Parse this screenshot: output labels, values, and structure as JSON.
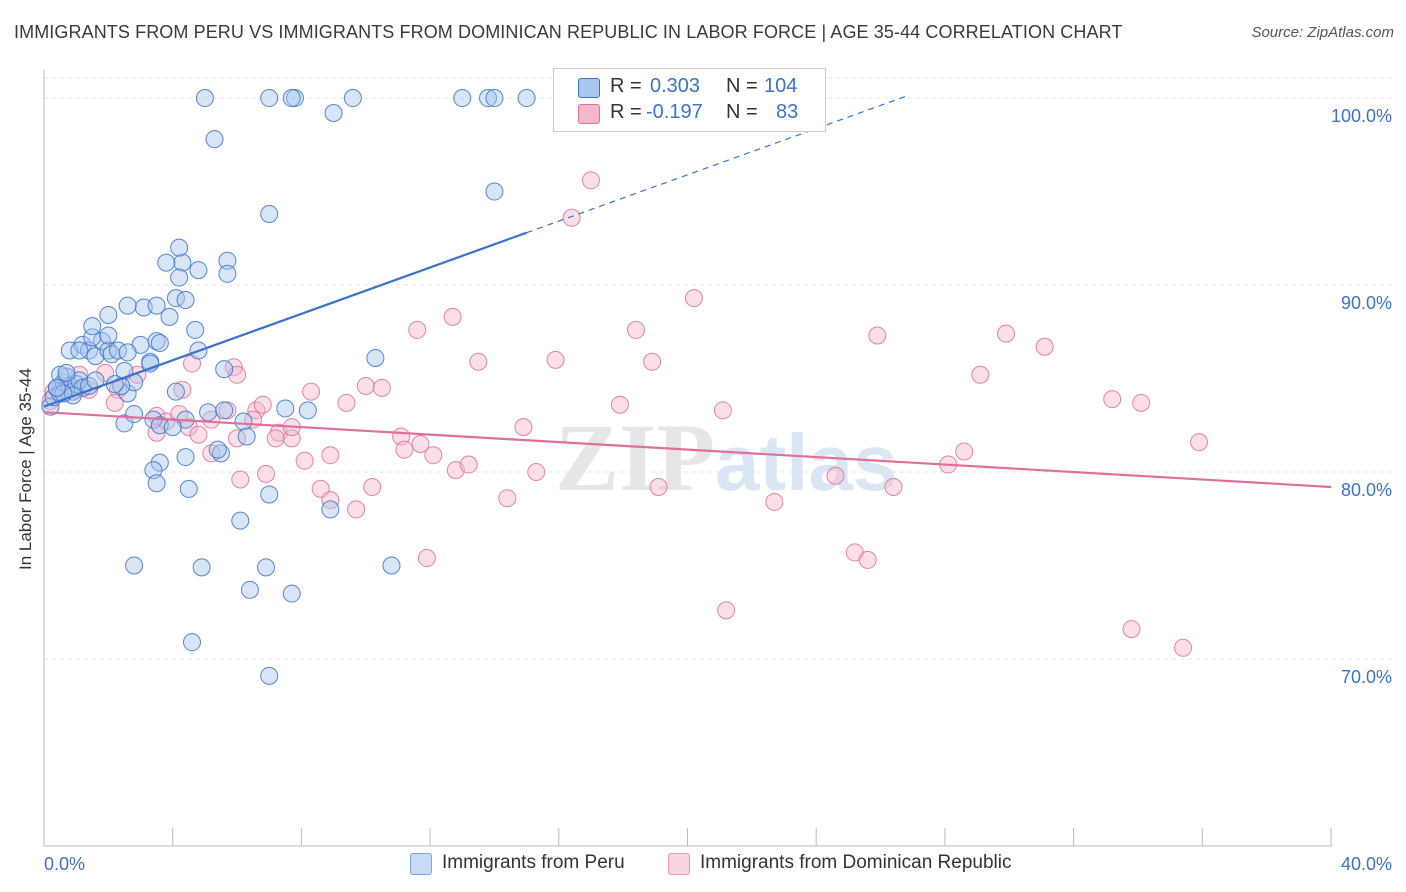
{
  "header": {
    "title": "IMMIGRANTS FROM PERU VS IMMIGRANTS FROM DOMINICAN REPUBLIC IN LABOR FORCE | AGE 35-44 CORRELATION CHART",
    "source": "Source: ZipAtlas.com"
  },
  "watermark": {
    "zip": "ZIP",
    "atlas": "atlas"
  },
  "legend": {
    "rows": [
      {
        "r_label": "R = ",
        "r_value": "0.303",
        "n_label": "N = ",
        "n_value": "104"
      },
      {
        "r_label": "R = ",
        "r_value": "-0.197",
        "n_label": "N = ",
        "n_value": "83"
      }
    ]
  },
  "bottom_legend": {
    "series1": "Immigrants from Peru",
    "series2": "Immigrants from Dominican Republic"
  },
  "colors": {
    "blue": "#3a73c9",
    "blue_fill": "#a9c6ee",
    "pink": "#e0709a",
    "pink_fill": "#f5b8cb",
    "axis_text": "#3a73c9"
  },
  "chart_data": {
    "type": "scatter",
    "title": "IMMIGRANTS FROM PERU VS IMMIGRANTS FROM DOMINICAN REPUBLIC IN LABOR FORCE | AGE 35-44 CORRELATION CHART",
    "xlabel": "",
    "ylabel": "In Labor Force | Age 35-44",
    "xlim": [
      0,
      40
    ],
    "ylim": [
      60,
      101.5
    ],
    "x_ticks": [
      "0.0%",
      "40.0%"
    ],
    "y_ticks": [
      {
        "value": 70,
        "label": "70.0%"
      },
      {
        "value": 80,
        "label": "80.0%"
      },
      {
        "value": 90,
        "label": "90.0%"
      },
      {
        "value": 100,
        "label": "100.0%"
      }
    ],
    "grid": true,
    "series": [
      {
        "name": "Immigrants from Peru",
        "color": "#3a73c9",
        "trend": {
          "x": [
            0,
            15
          ],
          "y": [
            83.5,
            92.8
          ],
          "extended_to": {
            "x": 26.8,
            "y": 100.1
          }
        },
        "points": [
          [
            0.2,
            83.5
          ],
          [
            0.3,
            84
          ],
          [
            0.4,
            84.5
          ],
          [
            0.5,
            84.2
          ],
          [
            0.6,
            84.8
          ],
          [
            0.7,
            85.1
          ],
          [
            0.8,
            84.6
          ],
          [
            0.9,
            84.3
          ],
          [
            1,
            84.7
          ],
          [
            1.1,
            84.9
          ],
          [
            0.5,
            85.2
          ],
          [
            0.7,
            85.3
          ],
          [
            1.2,
            84.5
          ],
          [
            1.4,
            84.6
          ],
          [
            0.8,
            86.5
          ],
          [
            1.2,
            86.8
          ],
          [
            1.4,
            86.5
          ],
          [
            1.6,
            86.2
          ],
          [
            1.8,
            87
          ],
          [
            2,
            86.5
          ],
          [
            1.5,
            87.2
          ],
          [
            1.5,
            87.8
          ],
          [
            2.1,
            86.3
          ],
          [
            2.3,
            86.5
          ],
          [
            2,
            87.3
          ],
          [
            2,
            88.4
          ],
          [
            2.5,
            85.4
          ],
          [
            2.6,
            84.2
          ],
          [
            2.8,
            84.8
          ],
          [
            2.4,
            84.6
          ],
          [
            3,
            86.8
          ],
          [
            3.3,
            85.9
          ],
          [
            3.5,
            87
          ],
          [
            3.3,
            85.8
          ],
          [
            3.6,
            86.9
          ],
          [
            2.6,
            86.4
          ],
          [
            3.1,
            88.8
          ],
          [
            3.5,
            88.9
          ],
          [
            2.6,
            88.9
          ],
          [
            4.1,
            89.3
          ],
          [
            3.9,
            88.3
          ],
          [
            4.3,
            91.2
          ],
          [
            3.8,
            91.2
          ],
          [
            4.2,
            92
          ],
          [
            4.2,
            90.4
          ],
          [
            4.8,
            90.8
          ],
          [
            5.7,
            91.3
          ],
          [
            5.7,
            90.6
          ],
          [
            4.8,
            86.5
          ],
          [
            4.7,
            87.6
          ],
          [
            4.4,
            89.2
          ],
          [
            5.6,
            85.5
          ],
          [
            4.1,
            84.3
          ],
          [
            4.4,
            82.8
          ],
          [
            3.4,
            82.8
          ],
          [
            2.5,
            82.6
          ],
          [
            2.8,
            83.1
          ],
          [
            3.6,
            82.5
          ],
          [
            4,
            82.4
          ],
          [
            5.1,
            83.2
          ],
          [
            5.6,
            83.3
          ],
          [
            6.2,
            82.7
          ],
          [
            6.3,
            81.9
          ],
          [
            7.5,
            83.4
          ],
          [
            5.5,
            81
          ],
          [
            5.4,
            81.2
          ],
          [
            4.4,
            80.8
          ],
          [
            3.6,
            80.5
          ],
          [
            3.4,
            80.1
          ],
          [
            3.5,
            79.4
          ],
          [
            4.5,
            79.1
          ],
          [
            7,
            78.8
          ],
          [
            8.9,
            78
          ],
          [
            6.1,
            77.4
          ],
          [
            2.8,
            75
          ],
          [
            4.9,
            74.9
          ],
          [
            6.9,
            74.9
          ],
          [
            6.4,
            73.7
          ],
          [
            7.7,
            73.5
          ],
          [
            10.8,
            75
          ],
          [
            4.6,
            70.9
          ],
          [
            7,
            69.1
          ],
          [
            10.3,
            86.1
          ],
          [
            8.2,
            83.3
          ],
          [
            13.8,
            100
          ],
          [
            14,
            95
          ],
          [
            15,
            100
          ],
          [
            16.9,
            100
          ],
          [
            7,
            93.8
          ],
          [
            9,
            99.2
          ],
          [
            9.6,
            100
          ],
          [
            7.8,
            100
          ],
          [
            7.7,
            100
          ],
          [
            7,
            100
          ],
          [
            5,
            100
          ],
          [
            5.3,
            97.8
          ],
          [
            13,
            100
          ],
          [
            14,
            100
          ],
          [
            0.9,
            84.1
          ],
          [
            1.6,
            84.9
          ],
          [
            2.2,
            84.7
          ],
          [
            1.1,
            86.5
          ],
          [
            0.6,
            84.2
          ],
          [
            0.4,
            84.5
          ]
        ]
      },
      {
        "name": "Immigrants from Dominican Republic",
        "color": "#e0709a",
        "trend": {
          "x": [
            0,
            40
          ],
          "y": [
            83.2,
            79.2
          ]
        },
        "points": [
          [
            0.2,
            83.8
          ],
          [
            0.3,
            84.3
          ],
          [
            0.5,
            84.6
          ],
          [
            0.7,
            84.4
          ],
          [
            1,
            84.4
          ],
          [
            1.1,
            85.2
          ],
          [
            1.4,
            84.4
          ],
          [
            1.9,
            85.3
          ],
          [
            2.3,
            84.4
          ],
          [
            2.2,
            83.7
          ],
          [
            2.9,
            85.2
          ],
          [
            3.5,
            83
          ],
          [
            3.8,
            82.7
          ],
          [
            3.5,
            82.1
          ],
          [
            4.3,
            84.4
          ],
          [
            4.2,
            83.1
          ],
          [
            4.5,
            82.4
          ],
          [
            4.6,
            85.8
          ],
          [
            4.8,
            82
          ],
          [
            5.2,
            82.8
          ],
          [
            5.7,
            83.3
          ],
          [
            5.9,
            85.6
          ],
          [
            6,
            85.2
          ],
          [
            6.6,
            83.3
          ],
          [
            6.8,
            83.6
          ],
          [
            6.5,
            82.8
          ],
          [
            7.3,
            82.1
          ],
          [
            7.2,
            81.8
          ],
          [
            7.7,
            81.8
          ],
          [
            7.7,
            82.4
          ],
          [
            6,
            81.8
          ],
          [
            5.2,
            81
          ],
          [
            6.1,
            79.6
          ],
          [
            6.9,
            79.9
          ],
          [
            8.1,
            80.6
          ],
          [
            8.3,
            84.3
          ],
          [
            8.6,
            79.1
          ],
          [
            8.9,
            78.5
          ],
          [
            8.9,
            80.9
          ],
          [
            9.4,
            83.7
          ],
          [
            9.7,
            78
          ],
          [
            10,
            84.6
          ],
          [
            10.2,
            79.2
          ],
          [
            10.5,
            84.5
          ],
          [
            11.1,
            81.9
          ],
          [
            11.2,
            81.2
          ],
          [
            11.7,
            81.5
          ],
          [
            11.6,
            87.6
          ],
          [
            12.1,
            80.9
          ],
          [
            12.7,
            88.3
          ],
          [
            12.8,
            80.1
          ],
          [
            13.2,
            80.4
          ],
          [
            13.5,
            85.9
          ],
          [
            14.4,
            78.6
          ],
          [
            14.9,
            82.4
          ],
          [
            15.3,
            80
          ],
          [
            15.9,
            86
          ],
          [
            17,
            95.6
          ],
          [
            16.4,
            93.6
          ],
          [
            17.9,
            83.6
          ],
          [
            18.4,
            87.6
          ],
          [
            18.9,
            85.9
          ],
          [
            19.1,
            79.2
          ],
          [
            20.2,
            89.3
          ],
          [
            21.1,
            83.3
          ],
          [
            21.2,
            72.6
          ],
          [
            22.7,
            78.4
          ],
          [
            24.6,
            79.8
          ],
          [
            25.2,
            75.7
          ],
          [
            25.6,
            75.3
          ],
          [
            25.9,
            87.3
          ],
          [
            26.4,
            79.2
          ],
          [
            28.1,
            80.4
          ],
          [
            28.6,
            81.1
          ],
          [
            29.1,
            85.2
          ],
          [
            29.9,
            87.4
          ],
          [
            31.1,
            86.7
          ],
          [
            33.2,
            83.9
          ],
          [
            34.1,
            83.7
          ],
          [
            33.8,
            71.6
          ],
          [
            35.4,
            70.6
          ],
          [
            35.9,
            81.6
          ],
          [
            11.9,
            75.4
          ]
        ]
      }
    ],
    "extra_points_note": ""
  }
}
